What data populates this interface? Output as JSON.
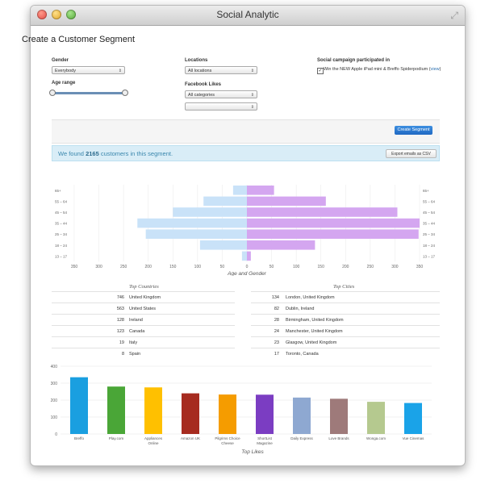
{
  "window": {
    "title": "Social Analytic"
  },
  "page": {
    "heading": "Create a Customer Segment"
  },
  "form": {
    "gender": {
      "label": "Gender",
      "value": "Everybody"
    },
    "age_range": {
      "label": "Age range"
    },
    "locations": {
      "label": "Locations",
      "value": "All locations"
    },
    "facebook_likes": {
      "label": "Facebook Likes",
      "value": "All categories",
      "value2": ""
    },
    "campaign": {
      "label": "Social campaign participated in",
      "item": "Win the NEW Apple iPad mini & Breffo Spiderpodium",
      "view_link": "view",
      "checked": true
    },
    "create_button": "Create Segment"
  },
  "alert": {
    "prefix": "We found ",
    "count": "2165",
    "suffix": " customers in this segment.",
    "export_button": "Export emails as CSV"
  },
  "chart_data": [
    {
      "type": "bar",
      "title": "Age and Gender",
      "categories": [
        "65+",
        "55 – 64",
        "45 – 54",
        "35 – 44",
        "25 – 34",
        "18 – 24",
        "13 – 17"
      ],
      "series": [
        {
          "values": [
            -28,
            -88,
            -150,
            -222,
            -205,
            -95,
            -10
          ],
          "color": "#c9e2f8"
        },
        {
          "values": [
            55,
            160,
            305,
            350,
            348,
            138,
            8
          ],
          "color": "#d4a6f0"
        }
      ],
      "x_ticks": [
        "350",
        "300",
        "250",
        "200",
        "150",
        "100",
        "50",
        "0",
        "50",
        "100",
        "150",
        "200",
        "250",
        "300",
        "350"
      ],
      "xlim": [
        -350,
        350
      ],
      "grid": true
    },
    {
      "type": "bar",
      "title": "Top Likes",
      "categories": [
        "Breffo",
        "Play.com",
        "Appliances Online",
        "Amazon UK",
        "Pilgrims Choice Cheese",
        "ShortList Magazine",
        "Daily Express",
        "Love Brands",
        "Wonga.com",
        "Vue Cinemas"
      ],
      "values": [
        335,
        280,
        275,
        240,
        233,
        232,
        215,
        208,
        190,
        183
      ],
      "colors": [
        "#1a9fe0",
        "#4aa637",
        "#ffc000",
        "#a62b1f",
        "#f59c00",
        "#7b3dc2",
        "#8ea8d1",
        "#9e7a7a",
        "#b5c98f",
        "#1aa3e8"
      ],
      "ylim": [
        0,
        400
      ],
      "y_ticks": [
        "0",
        "100",
        "200",
        "300",
        "400"
      ],
      "grid": true
    }
  ],
  "top_countries": {
    "title": "Top Countries",
    "rows": [
      {
        "count": "746",
        "name": "United Kingdom"
      },
      {
        "count": "563",
        "name": "United States"
      },
      {
        "count": "128",
        "name": "Ireland"
      },
      {
        "count": "123",
        "name": "Canada"
      },
      {
        "count": "19",
        "name": "Italy"
      },
      {
        "count": "8",
        "name": "Spain"
      }
    ]
  },
  "top_cities": {
    "title": "Top Cities",
    "rows": [
      {
        "count": "134",
        "name": "London, United Kingdom"
      },
      {
        "count": "82",
        "name": "Dublin, Ireland"
      },
      {
        "count": "28",
        "name": "Birmingham, United Kingdom"
      },
      {
        "count": "24",
        "name": "Manchester, United Kingdom"
      },
      {
        "count": "23",
        "name": "Glasgow, United Kingdom"
      },
      {
        "count": "17",
        "name": "Toronto, Canada"
      }
    ]
  }
}
